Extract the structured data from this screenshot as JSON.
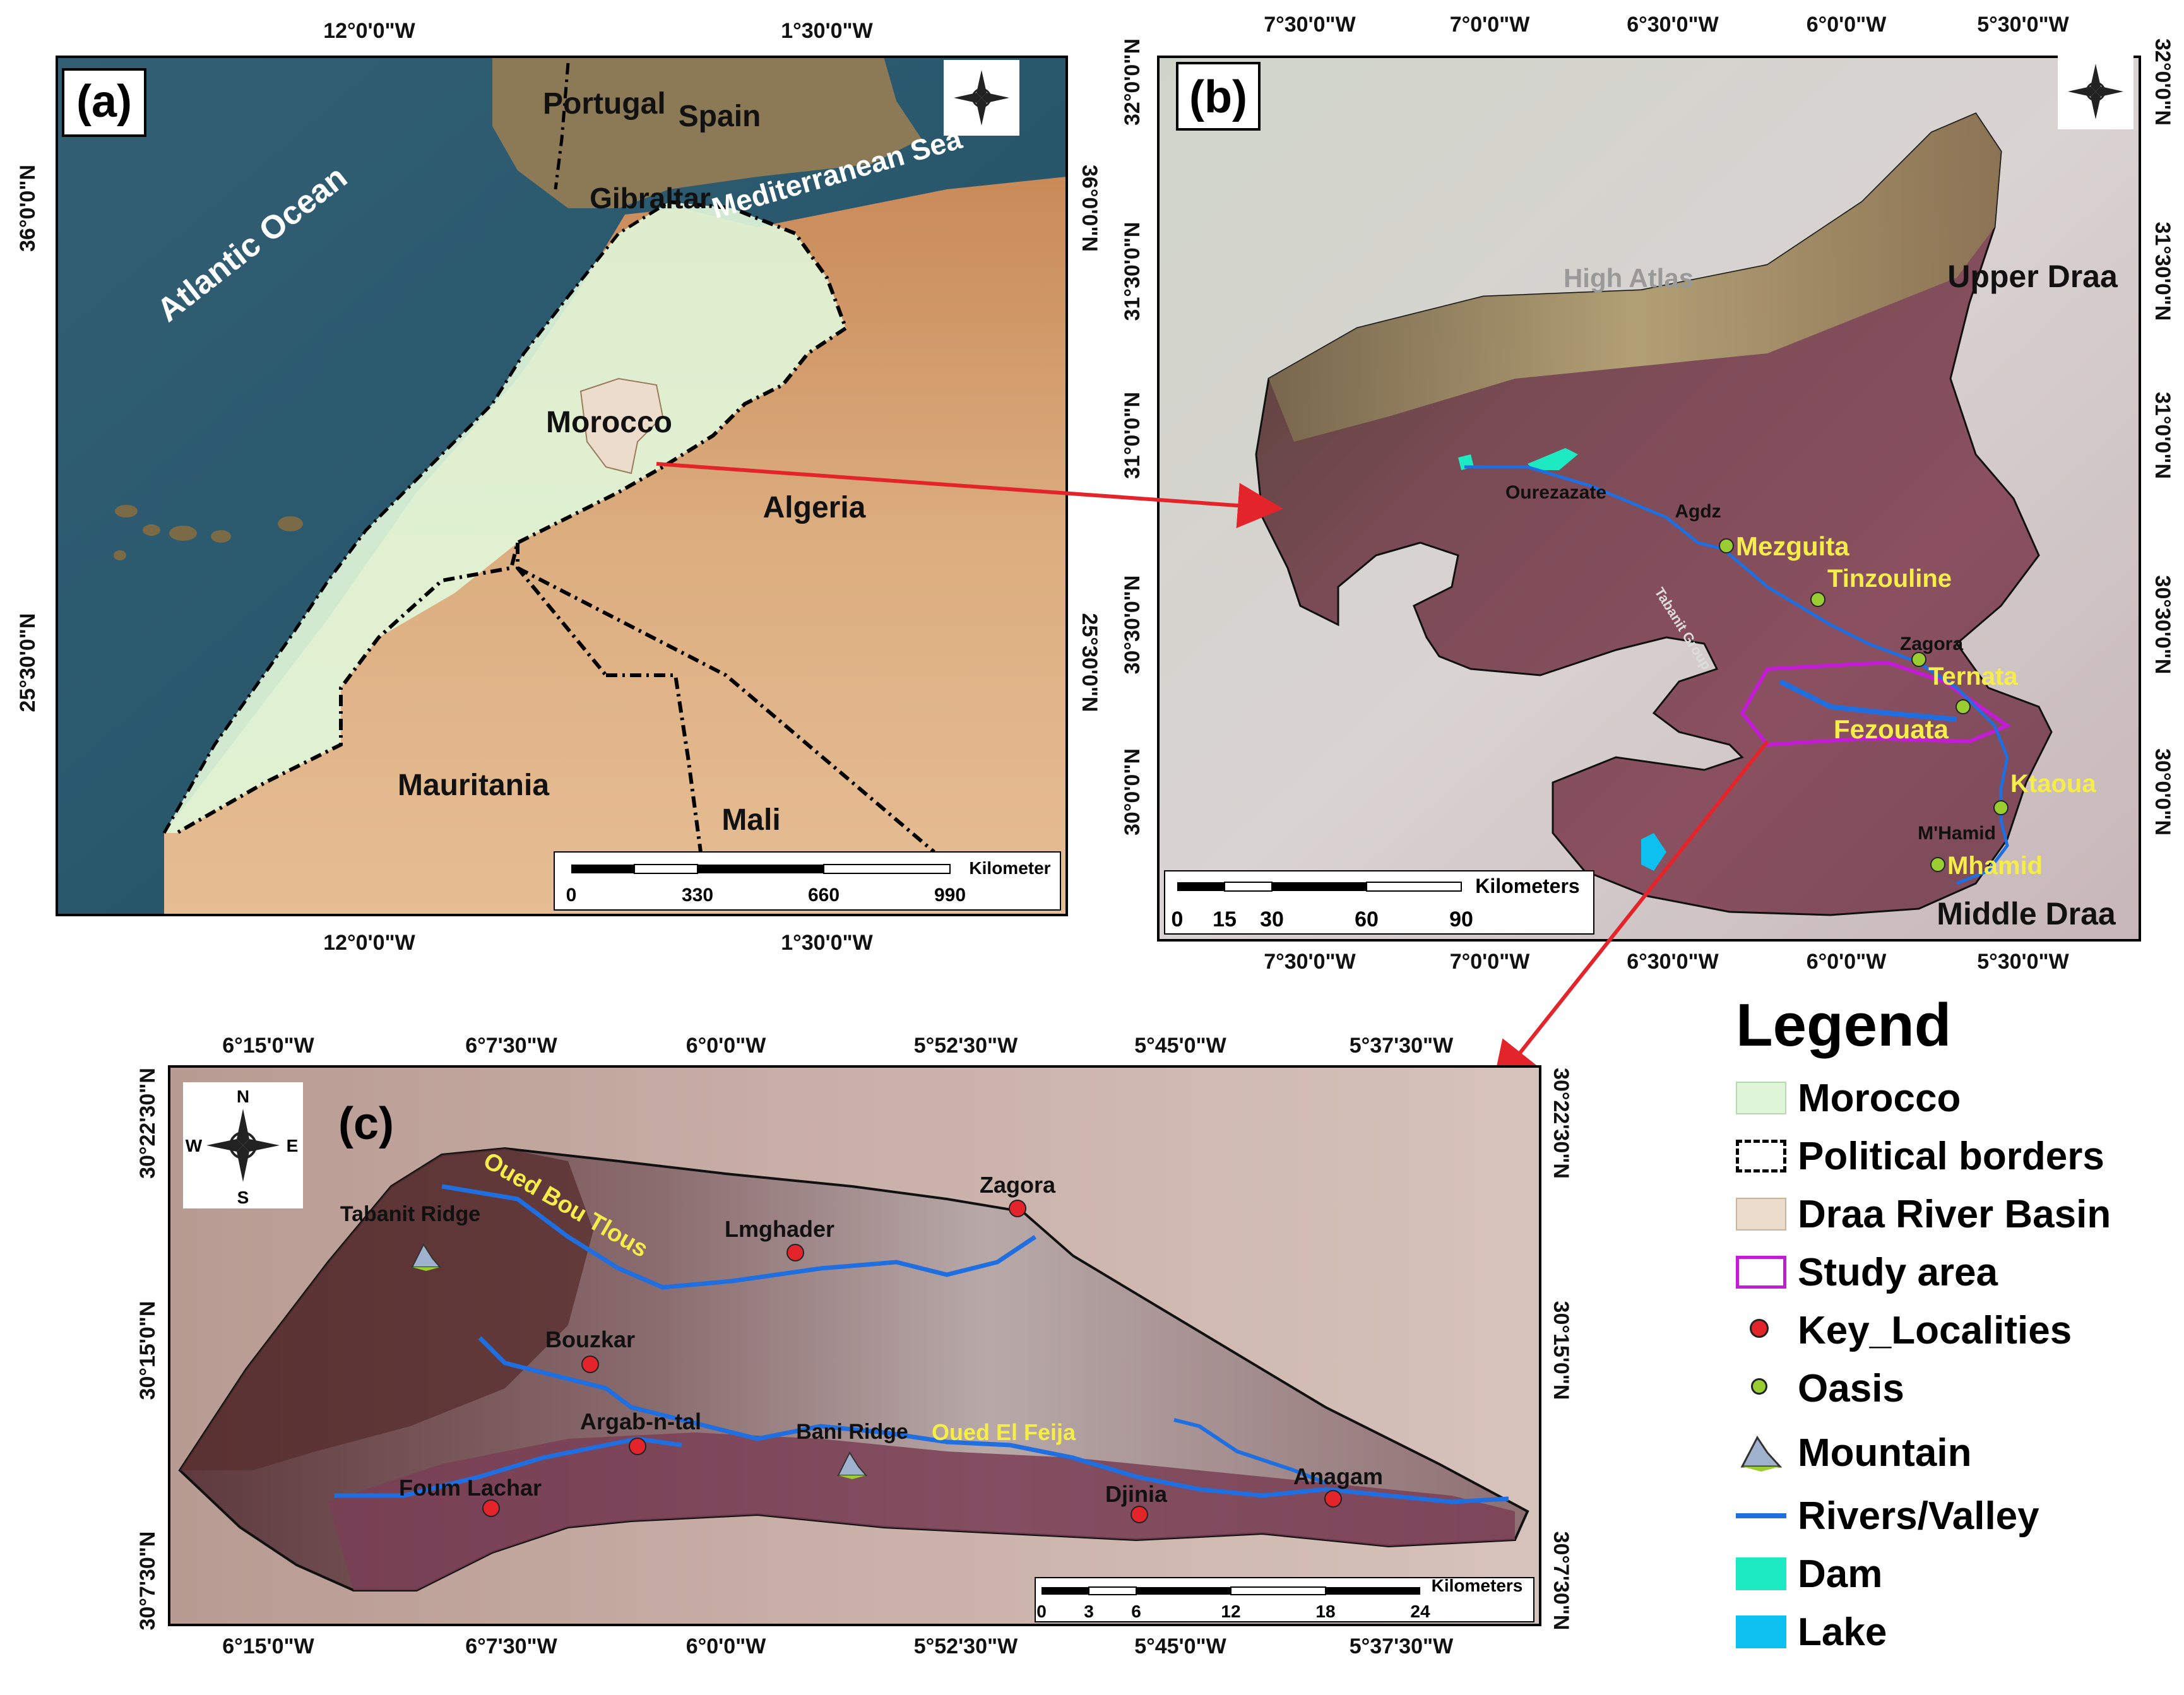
{
  "panel_a": {
    "label": "(a)",
    "top_ticks": [
      "12°0'0\"W",
      "1°30'0\"W"
    ],
    "bottom_ticks": [
      "12°0'0\"W",
      "1°30'0\"W"
    ],
    "left_ticks": [
      "36°0'0\"N",
      "25°30'0\"N"
    ],
    "right_ticks": [
      "36°0'0\"N",
      "25°30'0\"N"
    ],
    "places": {
      "portugal": "Portugal",
      "spain": "Spain",
      "gibraltar": "Gibraltar",
      "mediterranean": "Mediterranean Sea",
      "atlantic": "Atlantic Ocean",
      "morocco": "Morocco",
      "algeria": "Algeria",
      "mauritania": "Mauritania",
      "mali": "Mali"
    },
    "scale": {
      "unit": "Kilometer",
      "ticks": [
        "0",
        "330",
        "660",
        "990"
      ]
    }
  },
  "panel_b": {
    "label": "(b)",
    "top_ticks": [
      "7°30'0\"W",
      "7°0'0\"W",
      "6°30'0\"W",
      "6°0'0\"W",
      "5°30'0\"W"
    ],
    "bottom_ticks": [
      "7°30'0\"W",
      "7°0'0\"W",
      "6°30'0\"W",
      "6°0'0\"W",
      "5°30'0\"W"
    ],
    "left_ticks": [
      "32°0'0\"N",
      "31°30'0\"N",
      "31°0'0\"N",
      "30°30'0\"N",
      "30°0'0\"N"
    ],
    "right_ticks": [
      "32°0'0\"N",
      "31°30'0\"N",
      "31°0'0\"N",
      "30°30'0\"N",
      "30°0'0\"N"
    ],
    "places": {
      "high_atlas": "High Atlas",
      "upper_draa": "Upper Draa",
      "middle_draa": "Middle Draa",
      "ourezazate": "Ourezazate",
      "agdz": "Agdz",
      "zagora": "Zagora",
      "mhamid": "M'Hamid",
      "tabanit_group": "Tabanit Group"
    },
    "oases": [
      "Mezguita",
      "Tinzouline",
      "Ternata",
      "Fezouata",
      "Ktaoua",
      "Mhamid"
    ],
    "scale": {
      "unit": "Kilometers",
      "ticks": [
        "0",
        "15",
        "30",
        "60",
        "90"
      ]
    }
  },
  "panel_c": {
    "label": "(c)",
    "top_ticks": [
      "6°15'0\"W",
      "6°7'30\"W",
      "6°0'0\"W",
      "5°52'30\"W",
      "5°45'0\"W",
      "5°37'30\"W"
    ],
    "bottom_ticks": [
      "6°15'0\"W",
      "6°7'30\"W",
      "6°0'0\"W",
      "5°52'30\"W",
      "5°45'0\"W",
      "5°37'30\"W"
    ],
    "left_ticks": [
      "30°22'30\"N",
      "30°15'0\"N",
      "30°7'30\"N"
    ],
    "right_ticks": [
      "30°22'30\"N",
      "30°15'0\"N",
      "30°7'30\"N"
    ],
    "places": {
      "zagora": "Zagora",
      "lmghader": "Lmghader",
      "bouzkar": "Bouzkar",
      "argab": "Argab-n-tal",
      "foum_lachar": "Foum Lachar",
      "djinia": "Djinia",
      "anagam": "Anagam",
      "tabanit_ridge": "Tabanit Ridge",
      "bani_ridge": "Bani Ridge",
      "oued_bou_tlous": "Oued Bou Tlous",
      "oued_el_feija": "Oued El Feija"
    },
    "scale": {
      "unit": "Kilometers",
      "ticks": [
        "0",
        "3",
        "6",
        "12",
        "18",
        "24"
      ]
    }
  },
  "compass": {
    "n": "N",
    "s": "S",
    "e": "E",
    "w": "W"
  },
  "legend": {
    "title": "Legend",
    "items": [
      {
        "label": "Morocco",
        "color": "#dff5d8"
      },
      {
        "label": "Political borders",
        "color": "#000000"
      },
      {
        "label": "Draa River Basin",
        "color": "#ecdccb"
      },
      {
        "label": "Study area",
        "color": "#c41bd6"
      },
      {
        "label": "Key_Localities",
        "color": "#e3242b"
      },
      {
        "label": "Oasis",
        "color": "#9acd32"
      },
      {
        "label": "Mountain",
        "color": "#8da3c4"
      },
      {
        "label": "Rivers/Valley",
        "color": "#1f6fe0"
      },
      {
        "label": "Dam",
        "color": "#1de9c3"
      },
      {
        "label": "Lake",
        "color": "#0ec0f0"
      }
    ]
  },
  "colors": {
    "sea": "#2e5f73",
    "morocco_fill": "#dff5d8",
    "desert": "#d9a878",
    "river": "#1f6fe0",
    "arrow": "#e3242b",
    "oasis_text": "#f5ee4a"
  }
}
